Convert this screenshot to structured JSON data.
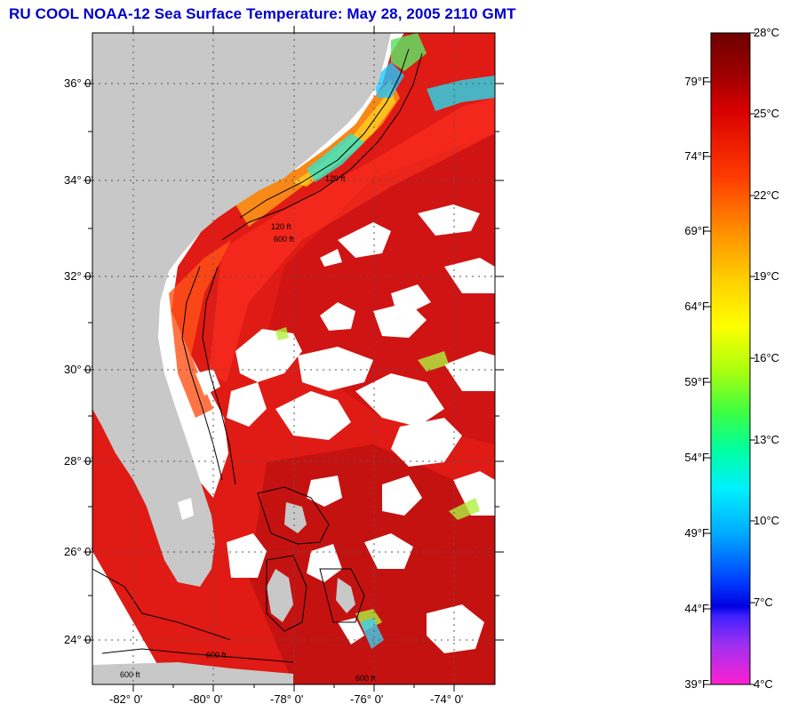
{
  "title": "RU COOL  NOAA-12  Sea Surface Temperature:  May 28, 2005 2110 GMT",
  "map": {
    "lat_labels": [
      "36° 0'",
      "34° 0'",
      "32° 0'",
      "30° 0'",
      "28° 0'",
      "26° 0'",
      "24° 0'"
    ],
    "lon_labels": [
      "-82° 0'",
      "-80° 0'",
      "-78° 0'",
      "-76° 0'",
      "-74° 0'"
    ],
    "contour_labels": [
      "120 ft",
      "600 ft",
      "120 ft",
      "600 ft",
      "600 ft",
      "600 ft"
    ]
  },
  "colorbar": {
    "fahrenheit": [
      "79°F",
      "74°F",
      "69°F",
      "64°F",
      "59°F",
      "54°F",
      "49°F",
      "44°F",
      "39°F"
    ],
    "celsius": [
      "28°C",
      "25°C",
      "22°C",
      "19°C",
      "16°C",
      "13°C",
      "10°C",
      "7°C",
      "4°C"
    ]
  },
  "colors": {
    "title": "#0000cc",
    "land": "#c8c8c8",
    "ocean_warm": "#e01a14",
    "cloud": "#ffffff"
  }
}
